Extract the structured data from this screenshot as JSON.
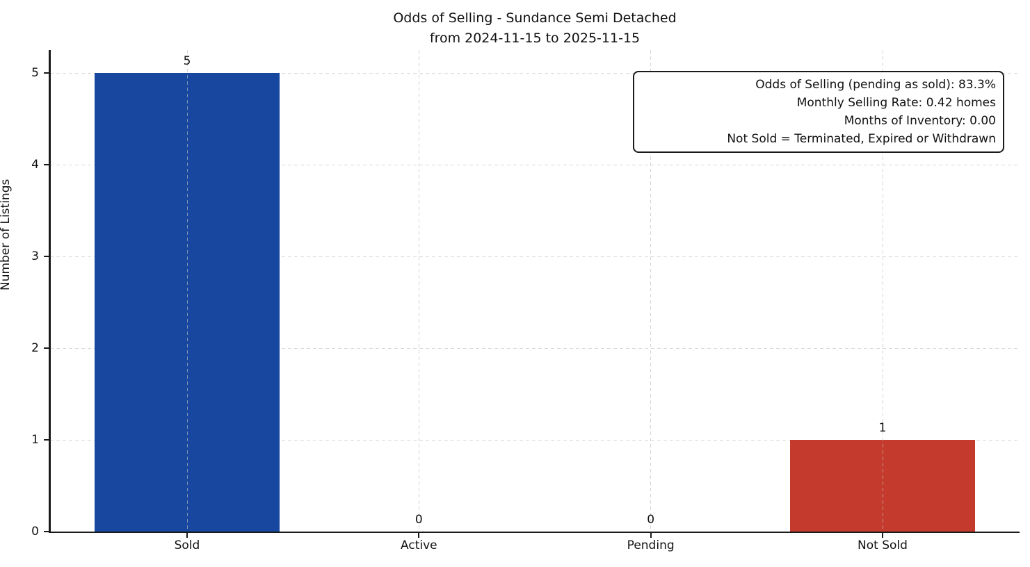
{
  "title": {
    "line1": "Odds of Selling - Sundance Semi Detached",
    "line2": "from 2024-11-15 to 2025-11-15"
  },
  "ylabel": "Number of Listings",
  "stats_box": {
    "lines": [
      "Odds of Selling (pending as sold): 83.3%",
      "Monthly Selling Rate: 0.42 homes",
      "Months of Inventory: 0.00",
      "Not Sold = Terminated, Expired or Withdrawn"
    ]
  },
  "chart_data": {
    "type": "bar",
    "title": "Odds of Selling - Sundance Semi Detached from 2024-11-15 to 2025-11-15",
    "categories": [
      "Sold",
      "Active",
      "Pending",
      "Not Sold"
    ],
    "values": [
      5,
      0,
      0,
      1
    ],
    "value_labels": [
      "5",
      "0",
      "0",
      "1"
    ],
    "bar_colors": [
      "#17479E",
      null,
      null,
      "#C43A2C"
    ],
    "xlabel": "",
    "ylabel": "Number of Listings",
    "ylim": [
      0,
      5.25
    ],
    "yticks": [
      0,
      1,
      2,
      3,
      4,
      5
    ],
    "grid": "dashed, horizontal and vertical",
    "annotation_position": "top-right",
    "colors": {
      "sold_bar": "#17479E",
      "not_sold_bar": "#C43A2C",
      "grid": "#d9d9d9",
      "spine": "#1a1a1a",
      "background": "#ffffff"
    }
  }
}
